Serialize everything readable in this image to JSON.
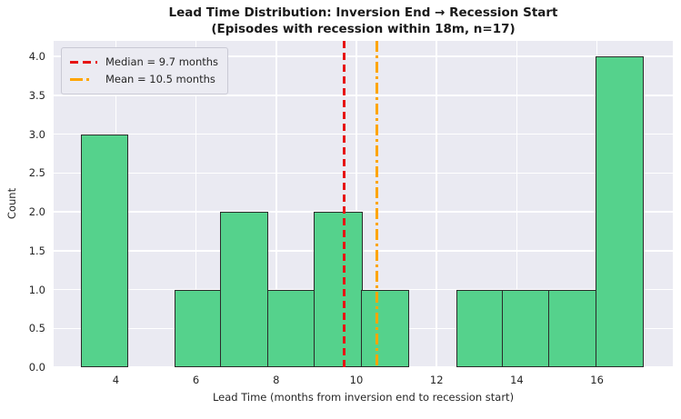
{
  "chart_data": {
    "type": "bar",
    "subtype": "histogram",
    "title": "Lead Time Distribution: Inversion End → Recession Start",
    "subtitle": "(Episodes with recession within 18m, n=17)",
    "xlabel": "Lead Time (months from inversion end to recession start)",
    "ylabel": "Count",
    "n": 17,
    "bin_edges": [
      3.13,
      4.3,
      5.47,
      6.64,
      7.81,
      8.98,
      10.15,
      11.32,
      12.49,
      13.66,
      14.83,
      16.0,
      17.17
    ],
    "counts": [
      3,
      0,
      1,
      2,
      1,
      2,
      1,
      0,
      1,
      1,
      1,
      4
    ],
    "median": 9.7,
    "mean": 10.5,
    "xlim": [
      2.45,
      17.89
    ],
    "ylim": [
      0,
      4.2
    ],
    "x_ticks": [
      4,
      6,
      8,
      10,
      12,
      14,
      16
    ],
    "y_ticks": [
      0.0,
      0.5,
      1.0,
      1.5,
      2.0,
      2.5,
      3.0,
      3.5,
      4.0
    ],
    "grid": true,
    "legend": {
      "position": "upper-left",
      "entries": [
        {
          "label": "Median = 9.7 months",
          "style": "dashed",
          "color": "#e61414"
        },
        {
          "label": "Mean = 10.5 months",
          "style": "dashdot",
          "color": "#ffa500"
        }
      ]
    },
    "colors": {
      "bar_fill": "#55d28c",
      "bar_edge": "#2b2b2b",
      "plot_background": "#eaeaf2",
      "grid_line": "#ffffff",
      "median_line": "#e61414",
      "mean_line": "#ffa500",
      "figure_background": "#ffffff"
    }
  }
}
